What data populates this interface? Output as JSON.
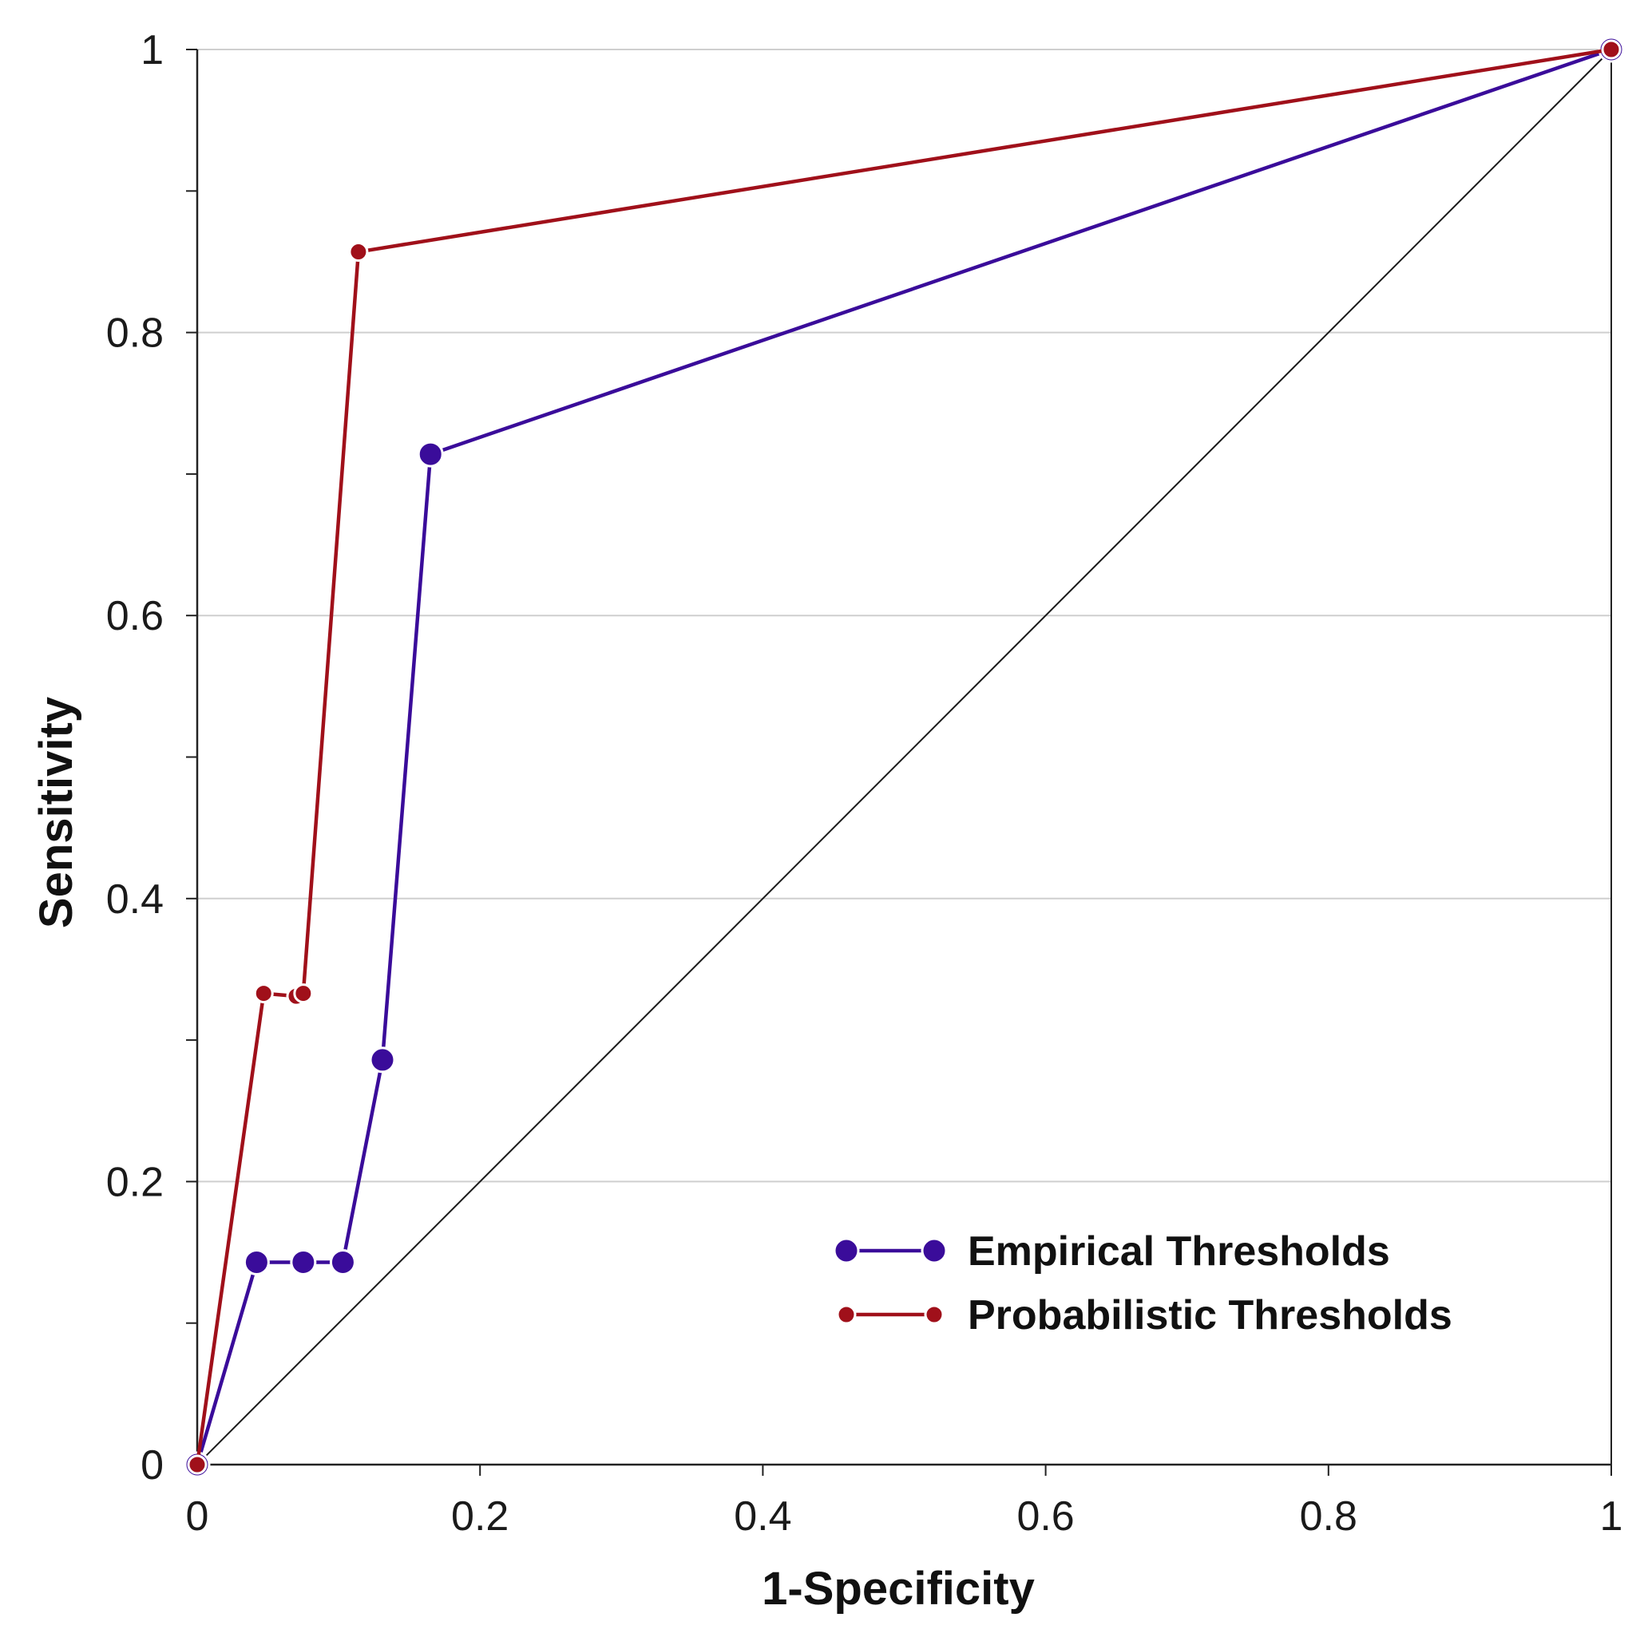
{
  "chart_data": {
    "type": "line",
    "title": "",
    "xlabel": "1-Specificity",
    "ylabel": "Sensitivity",
    "xlim": [
      0,
      1
    ],
    "ylim": [
      0,
      1
    ],
    "x_ticks": [
      "0",
      "0.2",
      "0.4",
      "0.6",
      "0.8",
      "1"
    ],
    "y_ticks": [
      "0",
      "0.2",
      "0.4",
      "0.6",
      "0.8",
      "1"
    ],
    "grid": "horizontal",
    "legend_position": "bottom-right",
    "reference_line": {
      "name": "chance diagonal",
      "points": [
        [
          0,
          0
        ],
        [
          1,
          1
        ]
      ],
      "color": "#1a1a1a"
    },
    "series": [
      {
        "name": "Empirical Thresholds",
        "color": "#3a0c9a",
        "marker": "large-circle",
        "points": [
          [
            0,
            0
          ],
          [
            0.042,
            0.143
          ],
          [
            0.075,
            0.143
          ],
          [
            0.103,
            0.143
          ],
          [
            0.131,
            0.286
          ],
          [
            0.165,
            0.714
          ],
          [
            1,
            1
          ]
        ]
      },
      {
        "name": "Probabilistic Thresholds",
        "color": "#a0101a",
        "marker": "small-circle",
        "points": [
          [
            0,
            0
          ],
          [
            0.047,
            0.333
          ],
          [
            0.07,
            0.331
          ],
          [
            0.075,
            0.333
          ],
          [
            0.114,
            0.857
          ],
          [
            1,
            1
          ]
        ]
      }
    ]
  }
}
